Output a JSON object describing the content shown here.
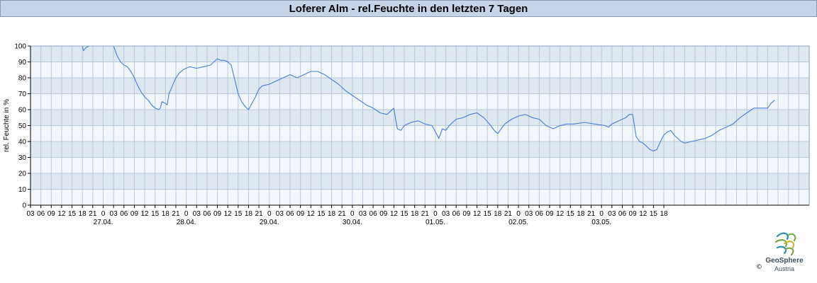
{
  "chart_data": {
    "type": "line",
    "title": "Loferer Alm - rel.Feuchte in den letzten 7 Tagen",
    "ylabel": "rel. Feuchte in %",
    "xlabel": "",
    "ylim": [
      0,
      100
    ],
    "yticks": [
      0,
      10,
      20,
      30,
      40,
      50,
      60,
      70,
      80,
      90,
      100
    ],
    "grid": true,
    "hour_labels": [
      "03",
      "06",
      "09",
      "12",
      "15",
      "18",
      "21",
      "0",
      "03",
      "06",
      "09",
      "12",
      "15",
      "18",
      "21",
      "0",
      "03",
      "06",
      "09",
      "12",
      "15",
      "18",
      "21",
      "0",
      "03",
      "06",
      "09",
      "12",
      "15",
      "18",
      "21",
      "0",
      "03",
      "06",
      "09",
      "12",
      "15",
      "18",
      "21",
      "0",
      "03",
      "06",
      "09",
      "12",
      "15",
      "18",
      "21",
      "0",
      "03",
      "06",
      "09",
      "12",
      "15",
      "18",
      "21",
      "0",
      "03",
      "06",
      "09",
      "12",
      "15",
      "18"
    ],
    "day_labels": [
      "27.04.",
      "28.04.",
      "29.04.",
      "30.04.",
      "01.05.",
      "02.05.",
      "03.05."
    ],
    "x_unit": "hours since 26.04. 03:00",
    "series": [
      {
        "color": "#4a7fd6",
        "points": [
          [
            15,
            100
          ],
          [
            15.3,
            97
          ],
          [
            16,
            99
          ],
          [
            17,
            100
          ],
          [
            24,
            100
          ],
          [
            25,
            94
          ],
          [
            26,
            90
          ],
          [
            27,
            88
          ],
          [
            28,
            87
          ],
          [
            29,
            84
          ],
          [
            30,
            80
          ],
          [
            31,
            75
          ],
          [
            32,
            71
          ],
          [
            33,
            68
          ],
          [
            34,
            66
          ],
          [
            35,
            63
          ],
          [
            36,
            61
          ],
          [
            37,
            60
          ],
          [
            37.5,
            61
          ],
          [
            38,
            65
          ],
          [
            39,
            64
          ],
          [
            39.5,
            63
          ],
          [
            40,
            70
          ],
          [
            41,
            75
          ],
          [
            42,
            80
          ],
          [
            43,
            83
          ],
          [
            44,
            85
          ],
          [
            45,
            86
          ],
          [
            46,
            87
          ],
          [
            48,
            86
          ],
          [
            50,
            87
          ],
          [
            52,
            88
          ],
          [
            53,
            90
          ],
          [
            54,
            92
          ],
          [
            55,
            91
          ],
          [
            56,
            91
          ],
          [
            57,
            90
          ],
          [
            58,
            88
          ],
          [
            59,
            79
          ],
          [
            60,
            70
          ],
          [
            61,
            65
          ],
          [
            62,
            62
          ],
          [
            63,
            60
          ],
          [
            64,
            64
          ],
          [
            65,
            68
          ],
          [
            66,
            73
          ],
          [
            67,
            75
          ],
          [
            69,
            76
          ],
          [
            71,
            78
          ],
          [
            73,
            80
          ],
          [
            75,
            82
          ],
          [
            77,
            80
          ],
          [
            79,
            82
          ],
          [
            81,
            84
          ],
          [
            83,
            84
          ],
          [
            85,
            82
          ],
          [
            87,
            79
          ],
          [
            89,
            76
          ],
          [
            91,
            72
          ],
          [
            93,
            69
          ],
          [
            95,
            66
          ],
          [
            97,
            63
          ],
          [
            99,
            61
          ],
          [
            101,
            58
          ],
          [
            103,
            57
          ],
          [
            104,
            59
          ],
          [
            105,
            61
          ],
          [
            105.5,
            54
          ],
          [
            106,
            48
          ],
          [
            107,
            47
          ],
          [
            108,
            50
          ],
          [
            110,
            52
          ],
          [
            112,
            53
          ],
          [
            114,
            51
          ],
          [
            116,
            50
          ],
          [
            117,
            46
          ],
          [
            118,
            42
          ],
          [
            119,
            48
          ],
          [
            120,
            47
          ],
          [
            121,
            50
          ],
          [
            123,
            54
          ],
          [
            125,
            55
          ],
          [
            127,
            57
          ],
          [
            129,
            58
          ],
          [
            131,
            55
          ],
          [
            133,
            50
          ],
          [
            134,
            47
          ],
          [
            135,
            45
          ],
          [
            136,
            48
          ],
          [
            137,
            51
          ],
          [
            139,
            54
          ],
          [
            141,
            56
          ],
          [
            143,
            57
          ],
          [
            145,
            55
          ],
          [
            147,
            54
          ],
          [
            148,
            52
          ],
          [
            149,
            50
          ],
          [
            151,
            48
          ],
          [
            153,
            50
          ],
          [
            155,
            51
          ],
          [
            157,
            51
          ],
          [
            160,
            52
          ],
          [
            163,
            51
          ],
          [
            166,
            50
          ],
          [
            167,
            49
          ],
          [
            168,
            51
          ],
          [
            170,
            53
          ],
          [
            172,
            55
          ],
          [
            173,
            57
          ],
          [
            174,
            57
          ],
          [
            174.5,
            50
          ],
          [
            175,
            43
          ],
          [
            176,
            40
          ],
          [
            177,
            39
          ],
          [
            178,
            37
          ],
          [
            179,
            35
          ],
          [
            180,
            34
          ],
          [
            181,
            35
          ],
          [
            182,
            40
          ],
          [
            183,
            44
          ],
          [
            184,
            46
          ],
          [
            185,
            47
          ],
          [
            186,
            44
          ],
          [
            187,
            42
          ],
          [
            188,
            40
          ],
          [
            189,
            39
          ],
          [
            191,
            40
          ],
          [
            193,
            41
          ],
          [
            195,
            42
          ],
          [
            197,
            44
          ],
          [
            199,
            47
          ],
          [
            201,
            49
          ],
          [
            203,
            51
          ],
          [
            205,
            55
          ],
          [
            207,
            58
          ],
          [
            209,
            61
          ],
          [
            211,
            61
          ],
          [
            213,
            61
          ],
          [
            214,
            64
          ],
          [
            215,
            66
          ]
        ]
      }
    ]
  },
  "logo": {
    "name": "GeoSphere",
    "sub": "Austria",
    "copyright": "©"
  }
}
